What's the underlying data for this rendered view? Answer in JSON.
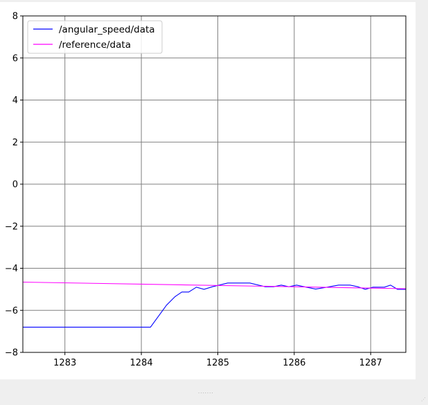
{
  "chart_data": {
    "type": "line",
    "title": "",
    "xlabel": "",
    "ylabel": "",
    "xlim": [
      1282.45,
      1287.46
    ],
    "ylim": [
      -8,
      8
    ],
    "xticks": [
      1283,
      1284,
      1285,
      1286,
      1287
    ],
    "yticks": [
      -8,
      -6,
      -4,
      -2,
      0,
      2,
      4,
      6,
      8
    ],
    "xtick_labels": [
      "1283",
      "1284",
      "1285",
      "1286",
      "1287"
    ],
    "ytick_labels": [
      "−8",
      "−6",
      "−4",
      "−2",
      "0",
      "2",
      "4",
      "6",
      "8"
    ],
    "grid": true,
    "legend_position": "top-left",
    "series": [
      {
        "name": "/angular_speed/data",
        "color": "#0000ff",
        "points": [
          [
            1282.45,
            -6.8
          ],
          [
            1284.12,
            -6.8
          ],
          [
            1284.23,
            -6.25
          ],
          [
            1284.33,
            -5.75
          ],
          [
            1284.44,
            -5.35
          ],
          [
            1284.53,
            -5.13
          ],
          [
            1284.62,
            -5.13
          ],
          [
            1284.72,
            -4.9
          ],
          [
            1284.82,
            -5.0
          ],
          [
            1284.93,
            -4.88
          ],
          [
            1285.13,
            -4.7
          ],
          [
            1285.42,
            -4.7
          ],
          [
            1285.62,
            -4.88
          ],
          [
            1285.73,
            -4.88
          ],
          [
            1285.83,
            -4.8
          ],
          [
            1285.93,
            -4.88
          ],
          [
            1286.03,
            -4.8
          ],
          [
            1286.13,
            -4.88
          ],
          [
            1286.28,
            -4.99
          ],
          [
            1286.43,
            -4.9
          ],
          [
            1286.58,
            -4.8
          ],
          [
            1286.73,
            -4.8
          ],
          [
            1286.83,
            -4.88
          ],
          [
            1286.93,
            -5.0
          ],
          [
            1287.03,
            -4.9
          ],
          [
            1287.18,
            -4.9
          ],
          [
            1287.26,
            -4.8
          ],
          [
            1287.35,
            -5.0
          ],
          [
            1287.46,
            -5.0
          ]
        ]
      },
      {
        "name": "/reference/data",
        "color": "#ff00ff",
        "points": [
          [
            1282.45,
            -4.66
          ],
          [
            1287.46,
            -4.97
          ]
        ]
      }
    ]
  }
}
